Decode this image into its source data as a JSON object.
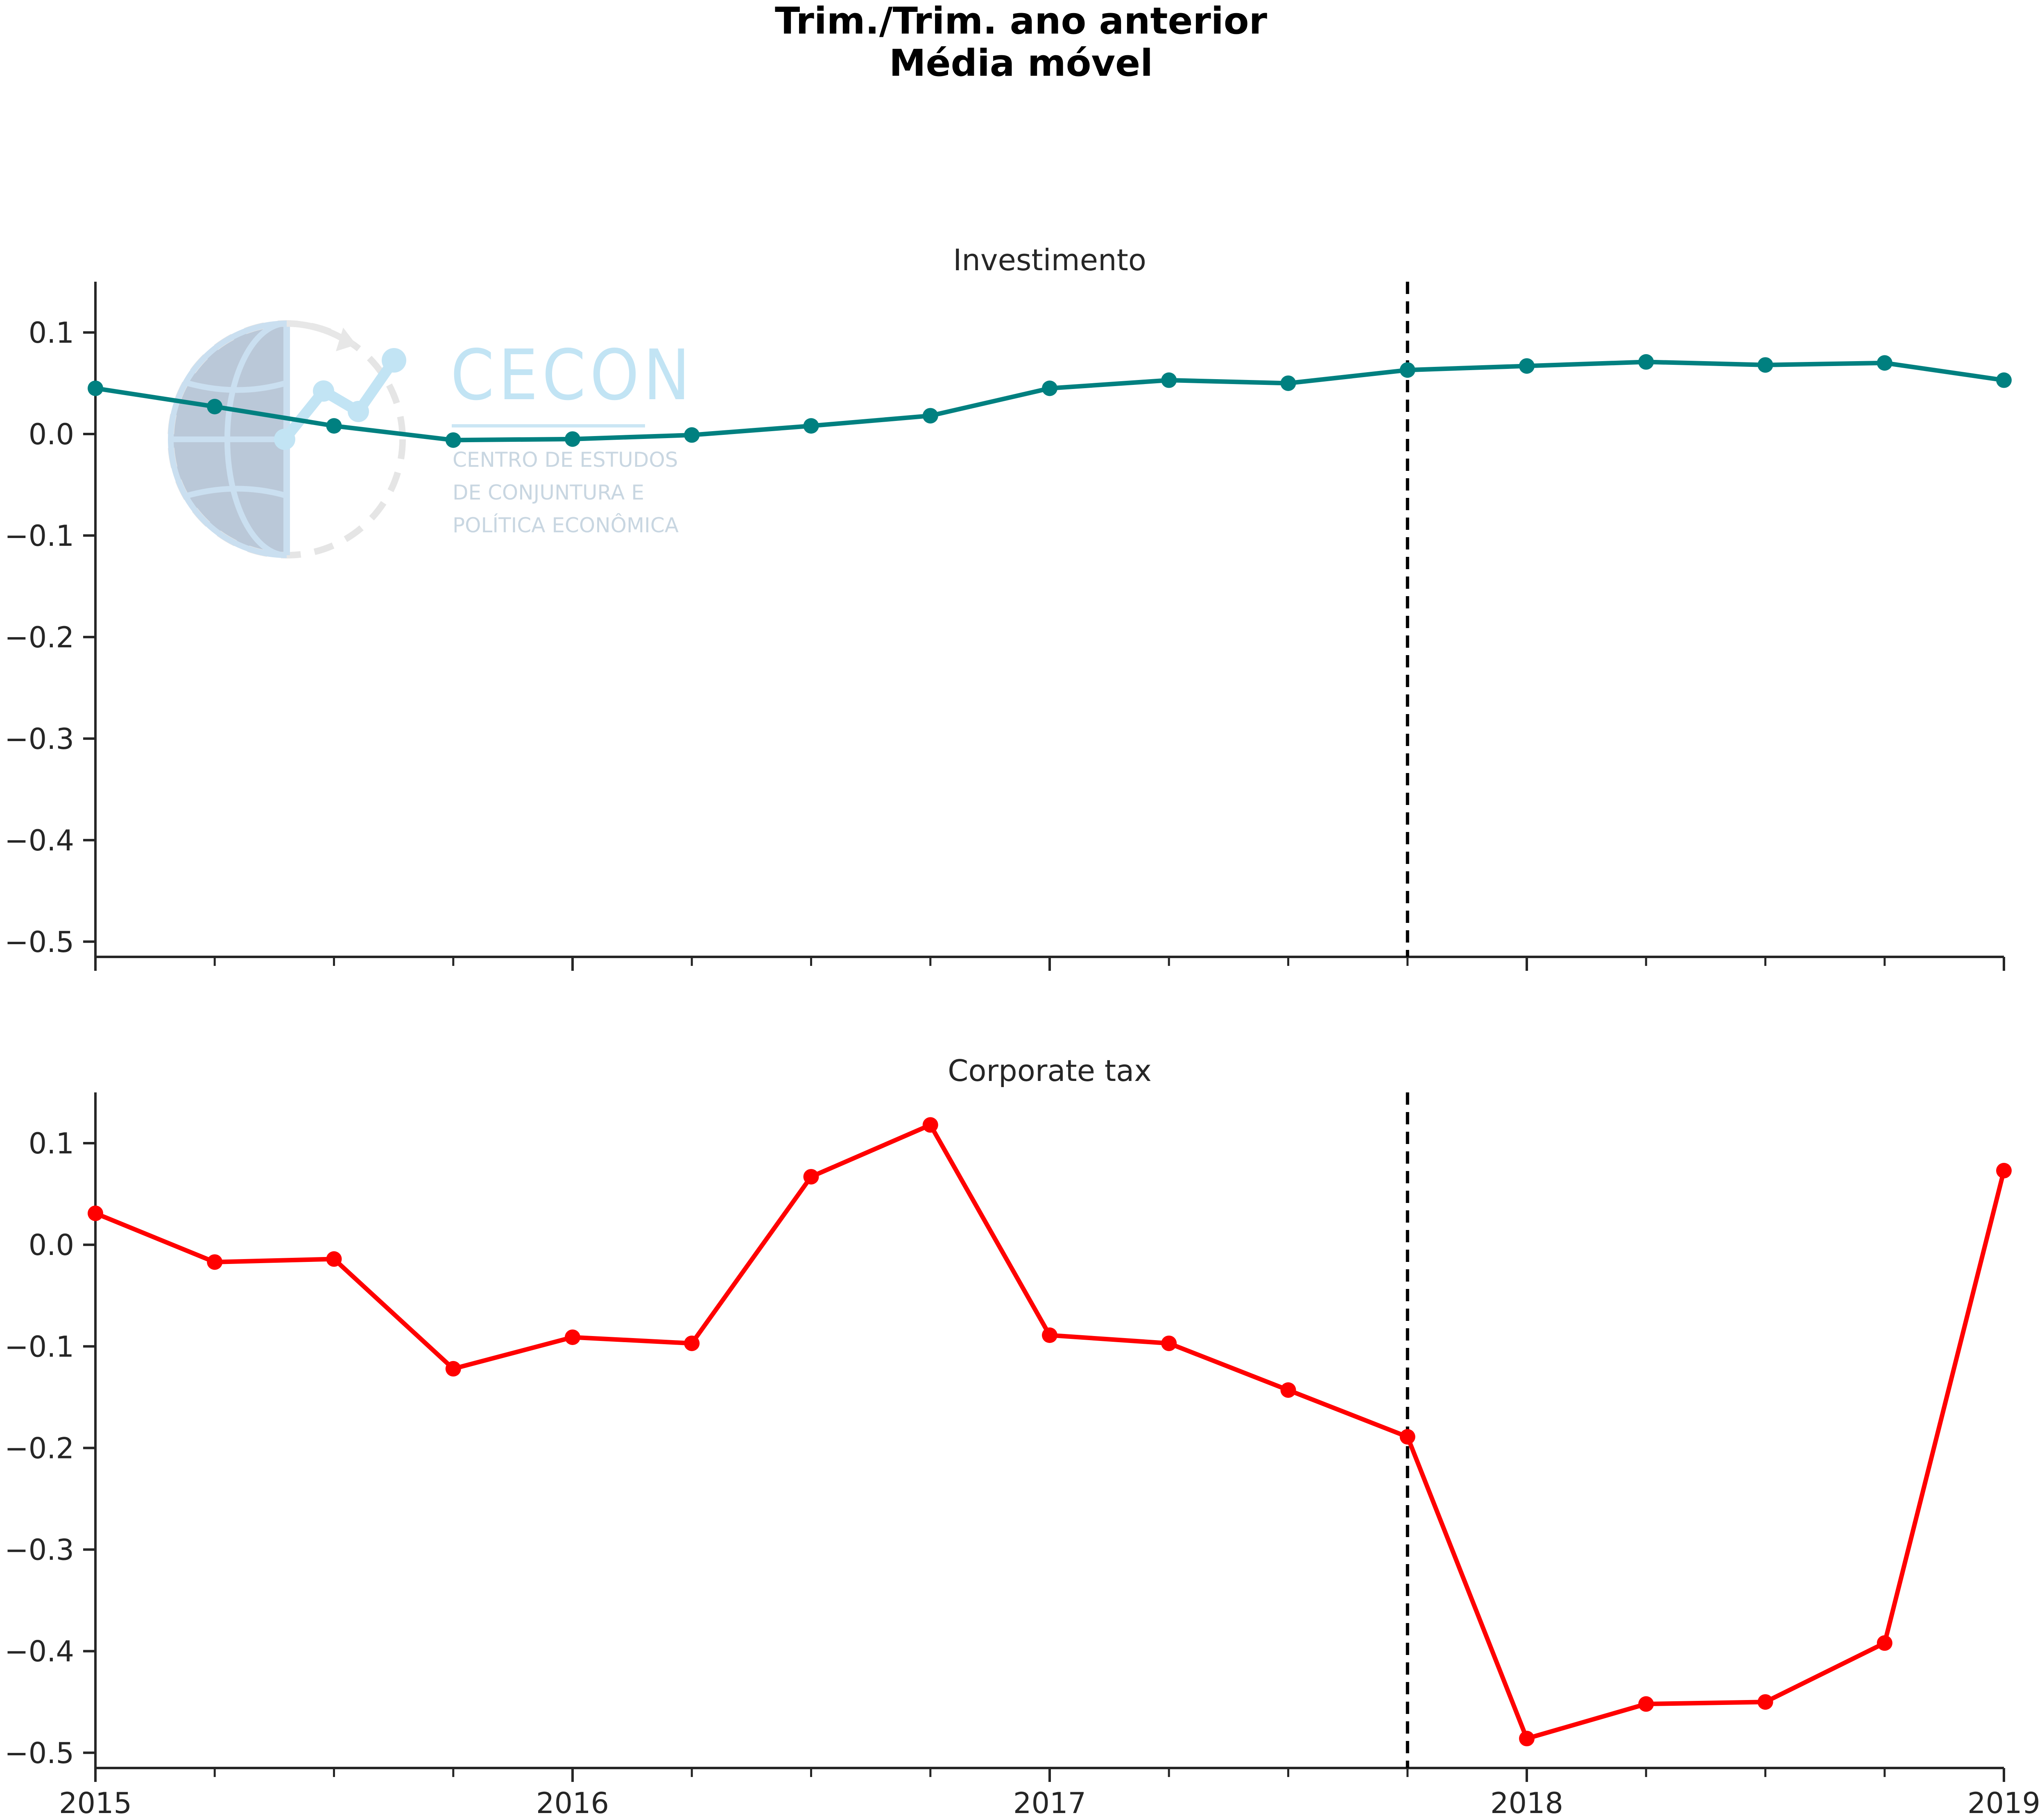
{
  "figure": {
    "title_line1": "Trim./Trim. ano anterior",
    "title_line2": "Média móvel"
  },
  "watermark": {
    "brand": "CECON",
    "line1": "CENTRO DE ESTUDOS",
    "line2": "DE CONJUNTURA E",
    "line3": "POLÍTICA ECONÔMICA"
  },
  "chart_data": [
    {
      "type": "line",
      "title": "Investimento",
      "color": "#008080",
      "x": [
        "2015-01",
        "2015-04",
        "2015-07",
        "2015-10",
        "2016-01",
        "2016-04",
        "2016-07",
        "2016-10",
        "2017-01",
        "2017-04",
        "2017-07",
        "2017-10",
        "2018-01",
        "2018-04",
        "2018-07",
        "2018-10",
        "2019-01"
      ],
      "values": [
        0.045,
        0.027,
        0.008,
        -0.006,
        -0.005,
        -0.001,
        0.008,
        0.018,
        0.045,
        0.053,
        0.05,
        0.063,
        0.067,
        0.071,
        0.068,
        0.07,
        0.053
      ],
      "ylim": [
        -0.515,
        0.15
      ],
      "yticks": [
        "0.1",
        "0.0",
        "−0.1",
        "−0.2",
        "−0.3",
        "−0.4",
        "−0.5"
      ],
      "ytick_values": [
        0.1,
        0.0,
        -0.1,
        -0.2,
        -0.3,
        -0.4,
        -0.5
      ],
      "xticks": [],
      "vline_x": "2017-10",
      "grid": false
    },
    {
      "type": "line",
      "title": "Corporate tax",
      "color": "#ff0000",
      "x": [
        "2015-01",
        "2015-04",
        "2015-07",
        "2015-10",
        "2016-01",
        "2016-04",
        "2016-07",
        "2016-10",
        "2017-01",
        "2017-04",
        "2017-07",
        "2017-10",
        "2018-01",
        "2018-04",
        "2018-07",
        "2018-10",
        "2019-01"
      ],
      "values": [
        0.031,
        -0.017,
        -0.014,
        -0.122,
        -0.091,
        -0.097,
        0.067,
        0.118,
        -0.089,
        -0.097,
        -0.143,
        -0.189,
        -0.486,
        -0.452,
        -0.45,
        -0.392,
        0.073
      ],
      "ylim": [
        -0.515,
        0.15
      ],
      "yticks": [
        "0.1",
        "0.0",
        "−0.1",
        "−0.2",
        "−0.3",
        "−0.4",
        "−0.5"
      ],
      "ytick_values": [
        0.1,
        0.0,
        -0.1,
        -0.2,
        -0.3,
        -0.4,
        -0.5
      ],
      "xticks": [
        "2015",
        "2016",
        "2017",
        "2018",
        "2019"
      ],
      "vline_x": "2017-10",
      "grid": false
    }
  ]
}
